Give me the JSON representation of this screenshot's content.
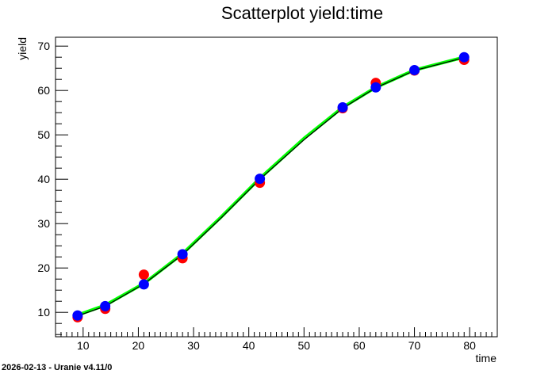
{
  "chart_data": {
    "type": "scatter",
    "title": "Scatterplot yield:time",
    "xlabel": "time",
    "ylabel": "yield",
    "xlim": [
      5,
      85
    ],
    "ylim": [
      4.5,
      72
    ],
    "x_ticks": [
      10,
      20,
      30,
      40,
      50,
      60,
      70,
      80
    ],
    "y_ticks": [
      10,
      20,
      30,
      40,
      50,
      60,
      70
    ],
    "grid": false,
    "series": [
      {
        "type": "scatter",
        "color": "#ff0000",
        "points": [
          [
            9,
            8.9
          ],
          [
            14,
            10.8
          ],
          [
            21,
            18.5
          ],
          [
            28,
            22.2
          ],
          [
            42,
            39.2
          ],
          [
            57,
            56.0
          ],
          [
            63,
            61.7
          ],
          [
            70,
            64.5
          ],
          [
            79,
            66.9
          ]
        ]
      },
      {
        "type": "scatter",
        "color": "#0000ff",
        "points": [
          [
            9,
            9.3
          ],
          [
            14,
            11.4
          ],
          [
            21,
            16.3
          ],
          [
            28,
            23.1
          ],
          [
            42,
            40.1
          ],
          [
            57,
            56.2
          ],
          [
            63,
            60.7
          ],
          [
            70,
            64.6
          ],
          [
            79,
            67.5
          ]
        ]
      },
      {
        "type": "line",
        "color": "#00ff00",
        "points": [
          [
            9,
            9.4
          ],
          [
            14,
            11.6
          ],
          [
            21,
            16.5
          ],
          [
            28,
            23.2
          ],
          [
            35,
            31.5
          ],
          [
            42,
            40.2
          ],
          [
            50,
            49.2
          ],
          [
            57,
            56.2
          ],
          [
            63,
            60.7
          ],
          [
            70,
            64.6
          ],
          [
            79,
            67.5
          ]
        ]
      },
      {
        "type": "line",
        "color": "#000000",
        "points": [
          [
            9,
            9.2
          ],
          [
            14,
            11.4
          ],
          [
            21,
            16.4
          ],
          [
            28,
            23.0
          ],
          [
            35,
            31.3
          ],
          [
            42,
            40.0
          ],
          [
            50,
            48.9
          ],
          [
            57,
            56.0
          ],
          [
            63,
            60.6
          ],
          [
            70,
            64.5
          ],
          [
            79,
            67.4
          ]
        ]
      }
    ]
  },
  "footer": "2026-02-13 - Uranie v4.11/0"
}
